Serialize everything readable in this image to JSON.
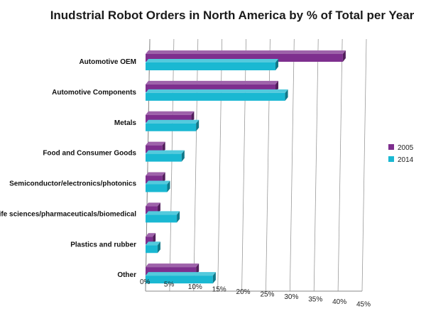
{
  "chart_data": {
    "type": "bar",
    "orientation": "horizontal",
    "style": "3d",
    "title": "Inudstrial Robot Orders in North America by % of Total per Year",
    "categories": [
      "Automotive OEM",
      "Automotive Components",
      "Metals",
      "Food and Consumer Goods",
      "Semiconductor/electronics/photonics",
      "Life sciences/pharmaceuticals/biomedical",
      "Plastics and rubber",
      "Other"
    ],
    "series": [
      {
        "name": "2005",
        "color": "#7e2f8e",
        "values": [
          41,
          27,
          9.5,
          3.5,
          3.5,
          2.5,
          1.5,
          10.5
        ]
      },
      {
        "name": "2014",
        "color": "#1ab8d2",
        "values": [
          27,
          29,
          10.5,
          7.5,
          4.5,
          6.5,
          2.5,
          14
        ]
      }
    ],
    "xlim": [
      0,
      45
    ],
    "x_ticks": [
      "0%",
      "5%",
      "10%",
      "15%",
      "20%",
      "25%",
      "30%",
      "35%",
      "40%",
      "45%"
    ],
    "xlabel": "",
    "ylabel": "",
    "grid": true,
    "legend": "right"
  }
}
